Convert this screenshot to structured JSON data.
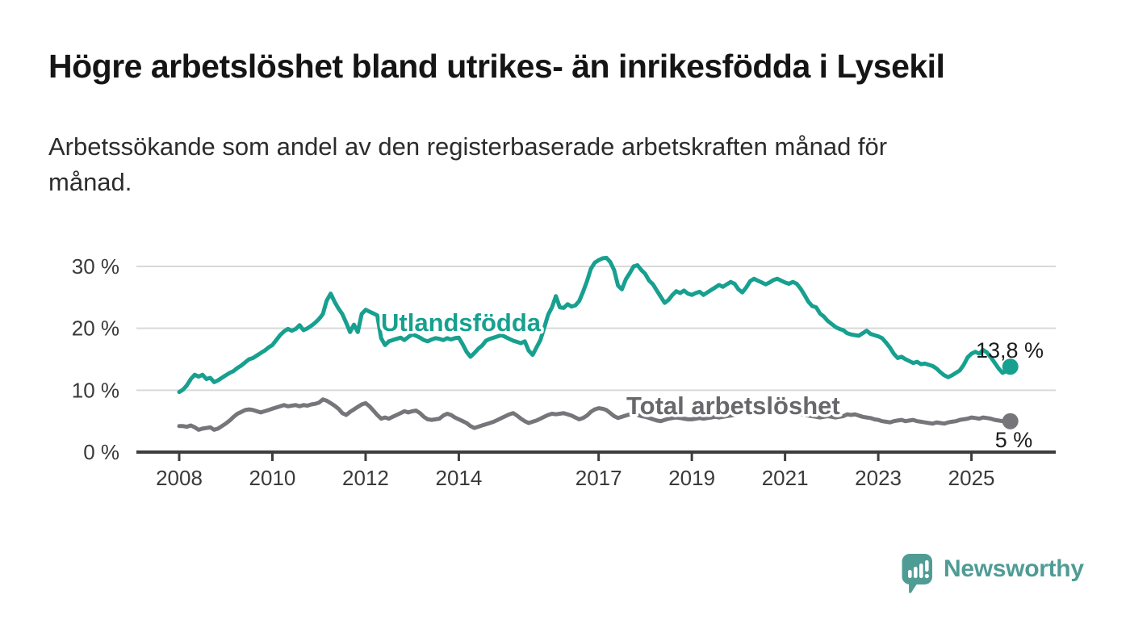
{
  "header": {
    "title": "Högre arbetslöshet bland utrikes- än inrikesfödda i Lysekil",
    "subtitle_line1": "Arbetssökande som andel av den registerbaserade arbetskraften månad för",
    "subtitle_line2": "månad."
  },
  "chart_data": {
    "type": "line",
    "title": "Högre arbetslöshet bland utrikes- än inrikesfödda i Lysekil",
    "subtitle": "Arbetssökande som andel av den registerbaserade arbetskraften månad för månad.",
    "unit": "%",
    "grid": "horizontal",
    "ylim": [
      0,
      33
    ],
    "x_range_years": [
      2008.0,
      2025.83
    ],
    "colors": {
      "utlandsfodda_line": "#17a08f",
      "total_line": "#767579",
      "total_label_text": "#67676c",
      "gridline": "#d9d9d9",
      "axis": "#3d3d3d",
      "end_value_text": "#1c1c1c"
    },
    "x_axis": {
      "ticks": [
        {
          "value": 2008,
          "label": "2008"
        },
        {
          "value": 2010,
          "label": "2010"
        },
        {
          "value": 2012,
          "label": "2012"
        },
        {
          "value": 2014,
          "label": "2014"
        },
        {
          "value": 2017,
          "label": "2017"
        },
        {
          "value": 2019,
          "label": "2019"
        },
        {
          "value": 2021,
          "label": "2021"
        },
        {
          "value": 2023,
          "label": "2023"
        },
        {
          "value": 2025,
          "label": "2025"
        }
      ]
    },
    "y_axis": {
      "ticks": [
        {
          "value": 0,
          "label": "0 %"
        },
        {
          "value": 10,
          "label": "10 %"
        },
        {
          "value": 20,
          "label": "20 %"
        },
        {
          "value": 30,
          "label": "30 %"
        }
      ]
    },
    "series": [
      {
        "name": "Utlandsfödda",
        "color": "#17a08f",
        "label_color": "#17a08f",
        "end_label": "13,8 %",
        "end_value": 13.8,
        "start_year": 2008,
        "interval_months": 1,
        "values": [
          9.7,
          10.1,
          10.8,
          11.8,
          12.5,
          12.2,
          12.5,
          11.8,
          12.0,
          11.3,
          11.6,
          12.0,
          12.4,
          12.8,
          13.1,
          13.6,
          14.0,
          14.5,
          15.0,
          15.2,
          15.6,
          16.0,
          16.4,
          16.9,
          17.3,
          18.1,
          18.9,
          19.5,
          19.9,
          19.6,
          19.9,
          20.5,
          19.7,
          20.0,
          20.4,
          20.9,
          21.5,
          22.3,
          24.5,
          25.6,
          24.3,
          23.2,
          22.3,
          20.9,
          19.4,
          20.6,
          19.4,
          22.3,
          23.0,
          22.7,
          22.4,
          22.1,
          18.4,
          17.3,
          17.9,
          18.1,
          18.3,
          18.5,
          18.1,
          18.6,
          19.0,
          18.8,
          18.5,
          18.1,
          17.9,
          18.2,
          18.4,
          18.3,
          18.1,
          18.4,
          18.2,
          18.4,
          18.5,
          17.4,
          16.2,
          15.4,
          16.0,
          16.7,
          17.2,
          18.0,
          18.3,
          18.5,
          18.7,
          18.9,
          18.6,
          18.3,
          18.0,
          17.8,
          17.6,
          17.9,
          16.4,
          15.7,
          16.9,
          18.1,
          20.1,
          22.2,
          23.4,
          25.2,
          23.4,
          23.3,
          23.9,
          23.5,
          23.7,
          24.4,
          25.9,
          27.6,
          29.6,
          30.6,
          31.0,
          31.3,
          31.4,
          30.7,
          29.4,
          26.9,
          26.3,
          27.9,
          28.9,
          30.0,
          30.2,
          29.4,
          28.8,
          27.7,
          27.1,
          26.1,
          25.1,
          24.1,
          24.6,
          25.4,
          26.0,
          25.7,
          26.1,
          25.6,
          25.4,
          25.7,
          25.9,
          25.4,
          25.8,
          26.2,
          26.6,
          27.0,
          26.7,
          27.1,
          27.5,
          27.2,
          26.3,
          25.8,
          26.6,
          27.6,
          28.0,
          27.7,
          27.4,
          27.1,
          27.4,
          27.8,
          28.0,
          27.7,
          27.4,
          27.2,
          27.5,
          27.2,
          26.4,
          25.4,
          24.3,
          23.6,
          23.4,
          22.4,
          21.9,
          21.2,
          20.7,
          20.2,
          19.9,
          19.7,
          19.2,
          19.0,
          18.9,
          18.8,
          19.2,
          19.6,
          19.1,
          18.9,
          18.7,
          18.4,
          17.7,
          16.9,
          15.9,
          15.2,
          15.4,
          15.0,
          14.7,
          14.4,
          14.6,
          14.2,
          14.3,
          14.1,
          13.9,
          13.5,
          12.9,
          12.4,
          12.1,
          12.4,
          12.8,
          13.2,
          14.1,
          15.3,
          15.9,
          16.2,
          15.9,
          16.5,
          16.1,
          15.3,
          14.4,
          13.5,
          12.8,
          13.1,
          13.8
        ]
      },
      {
        "name": "Total arbetslöshet",
        "color": "#767579",
        "label_color": "#67676c",
        "end_label": "5 %",
        "end_value": 5.0,
        "start_year": 2008,
        "interval_months": 1,
        "values": [
          4.2,
          4.2,
          4.1,
          4.3,
          4.0,
          3.6,
          3.8,
          3.9,
          4.0,
          3.6,
          3.8,
          4.2,
          4.6,
          5.1,
          5.7,
          6.2,
          6.5,
          6.8,
          6.9,
          6.8,
          6.6,
          6.4,
          6.6,
          6.8,
          7.0,
          7.2,
          7.4,
          7.6,
          7.4,
          7.5,
          7.6,
          7.4,
          7.6,
          7.5,
          7.7,
          7.8,
          8.0,
          8.5,
          8.3,
          7.9,
          7.5,
          7.0,
          6.3,
          6.0,
          6.5,
          6.9,
          7.3,
          7.7,
          7.9,
          7.4,
          6.7,
          6.0,
          5.4,
          5.6,
          5.4,
          5.7,
          6.0,
          6.3,
          6.6,
          6.4,
          6.6,
          6.7,
          6.3,
          5.7,
          5.3,
          5.2,
          5.3,
          5.4,
          5.9,
          6.2,
          6.0,
          5.6,
          5.3,
          5.0,
          4.7,
          4.2,
          3.9,
          4.1,
          4.3,
          4.5,
          4.7,
          4.9,
          5.2,
          5.5,
          5.8,
          6.1,
          6.3,
          5.9,
          5.4,
          5.0,
          4.7,
          4.9,
          5.1,
          5.4,
          5.7,
          6.0,
          6.2,
          6.1,
          6.2,
          6.3,
          6.1,
          5.9,
          5.6,
          5.3,
          5.5,
          5.9,
          6.5,
          6.9,
          7.1,
          7.0,
          6.8,
          6.3,
          5.8,
          5.5,
          5.7,
          5.9,
          6.1,
          6.2,
          6.0,
          5.8,
          5.7,
          5.5,
          5.3,
          5.1,
          5.0,
          5.2,
          5.4,
          5.5,
          5.6,
          5.5,
          5.4,
          5.3,
          5.3,
          5.4,
          5.5,
          5.4,
          5.5,
          5.6,
          5.7,
          5.6,
          5.7,
          5.8,
          5.9,
          6.0,
          6.2,
          6.4,
          7.0,
          7.4,
          7.6,
          7.5,
          7.4,
          7.2,
          7.1,
          7.0,
          6.9,
          6.8,
          6.7,
          6.6,
          6.5,
          6.4,
          6.2,
          6.0,
          5.9,
          5.8,
          5.7,
          5.6,
          5.7,
          5.8,
          5.7,
          5.6,
          5.7,
          5.8,
          6.1,
          6.0,
          6.1,
          5.9,
          5.7,
          5.6,
          5.5,
          5.3,
          5.2,
          5.0,
          4.9,
          4.8,
          5.0,
          5.1,
          5.2,
          5.0,
          5.1,
          5.2,
          5.0,
          4.9,
          4.8,
          4.7,
          4.6,
          4.8,
          4.7,
          4.6,
          4.8,
          4.9,
          5.0,
          5.2,
          5.3,
          5.4,
          5.6,
          5.5,
          5.4,
          5.6,
          5.5,
          5.4,
          5.2,
          5.1,
          5.0,
          4.9,
          5.0
        ]
      }
    ]
  },
  "footer": {
    "brand": "Newsworthy"
  }
}
